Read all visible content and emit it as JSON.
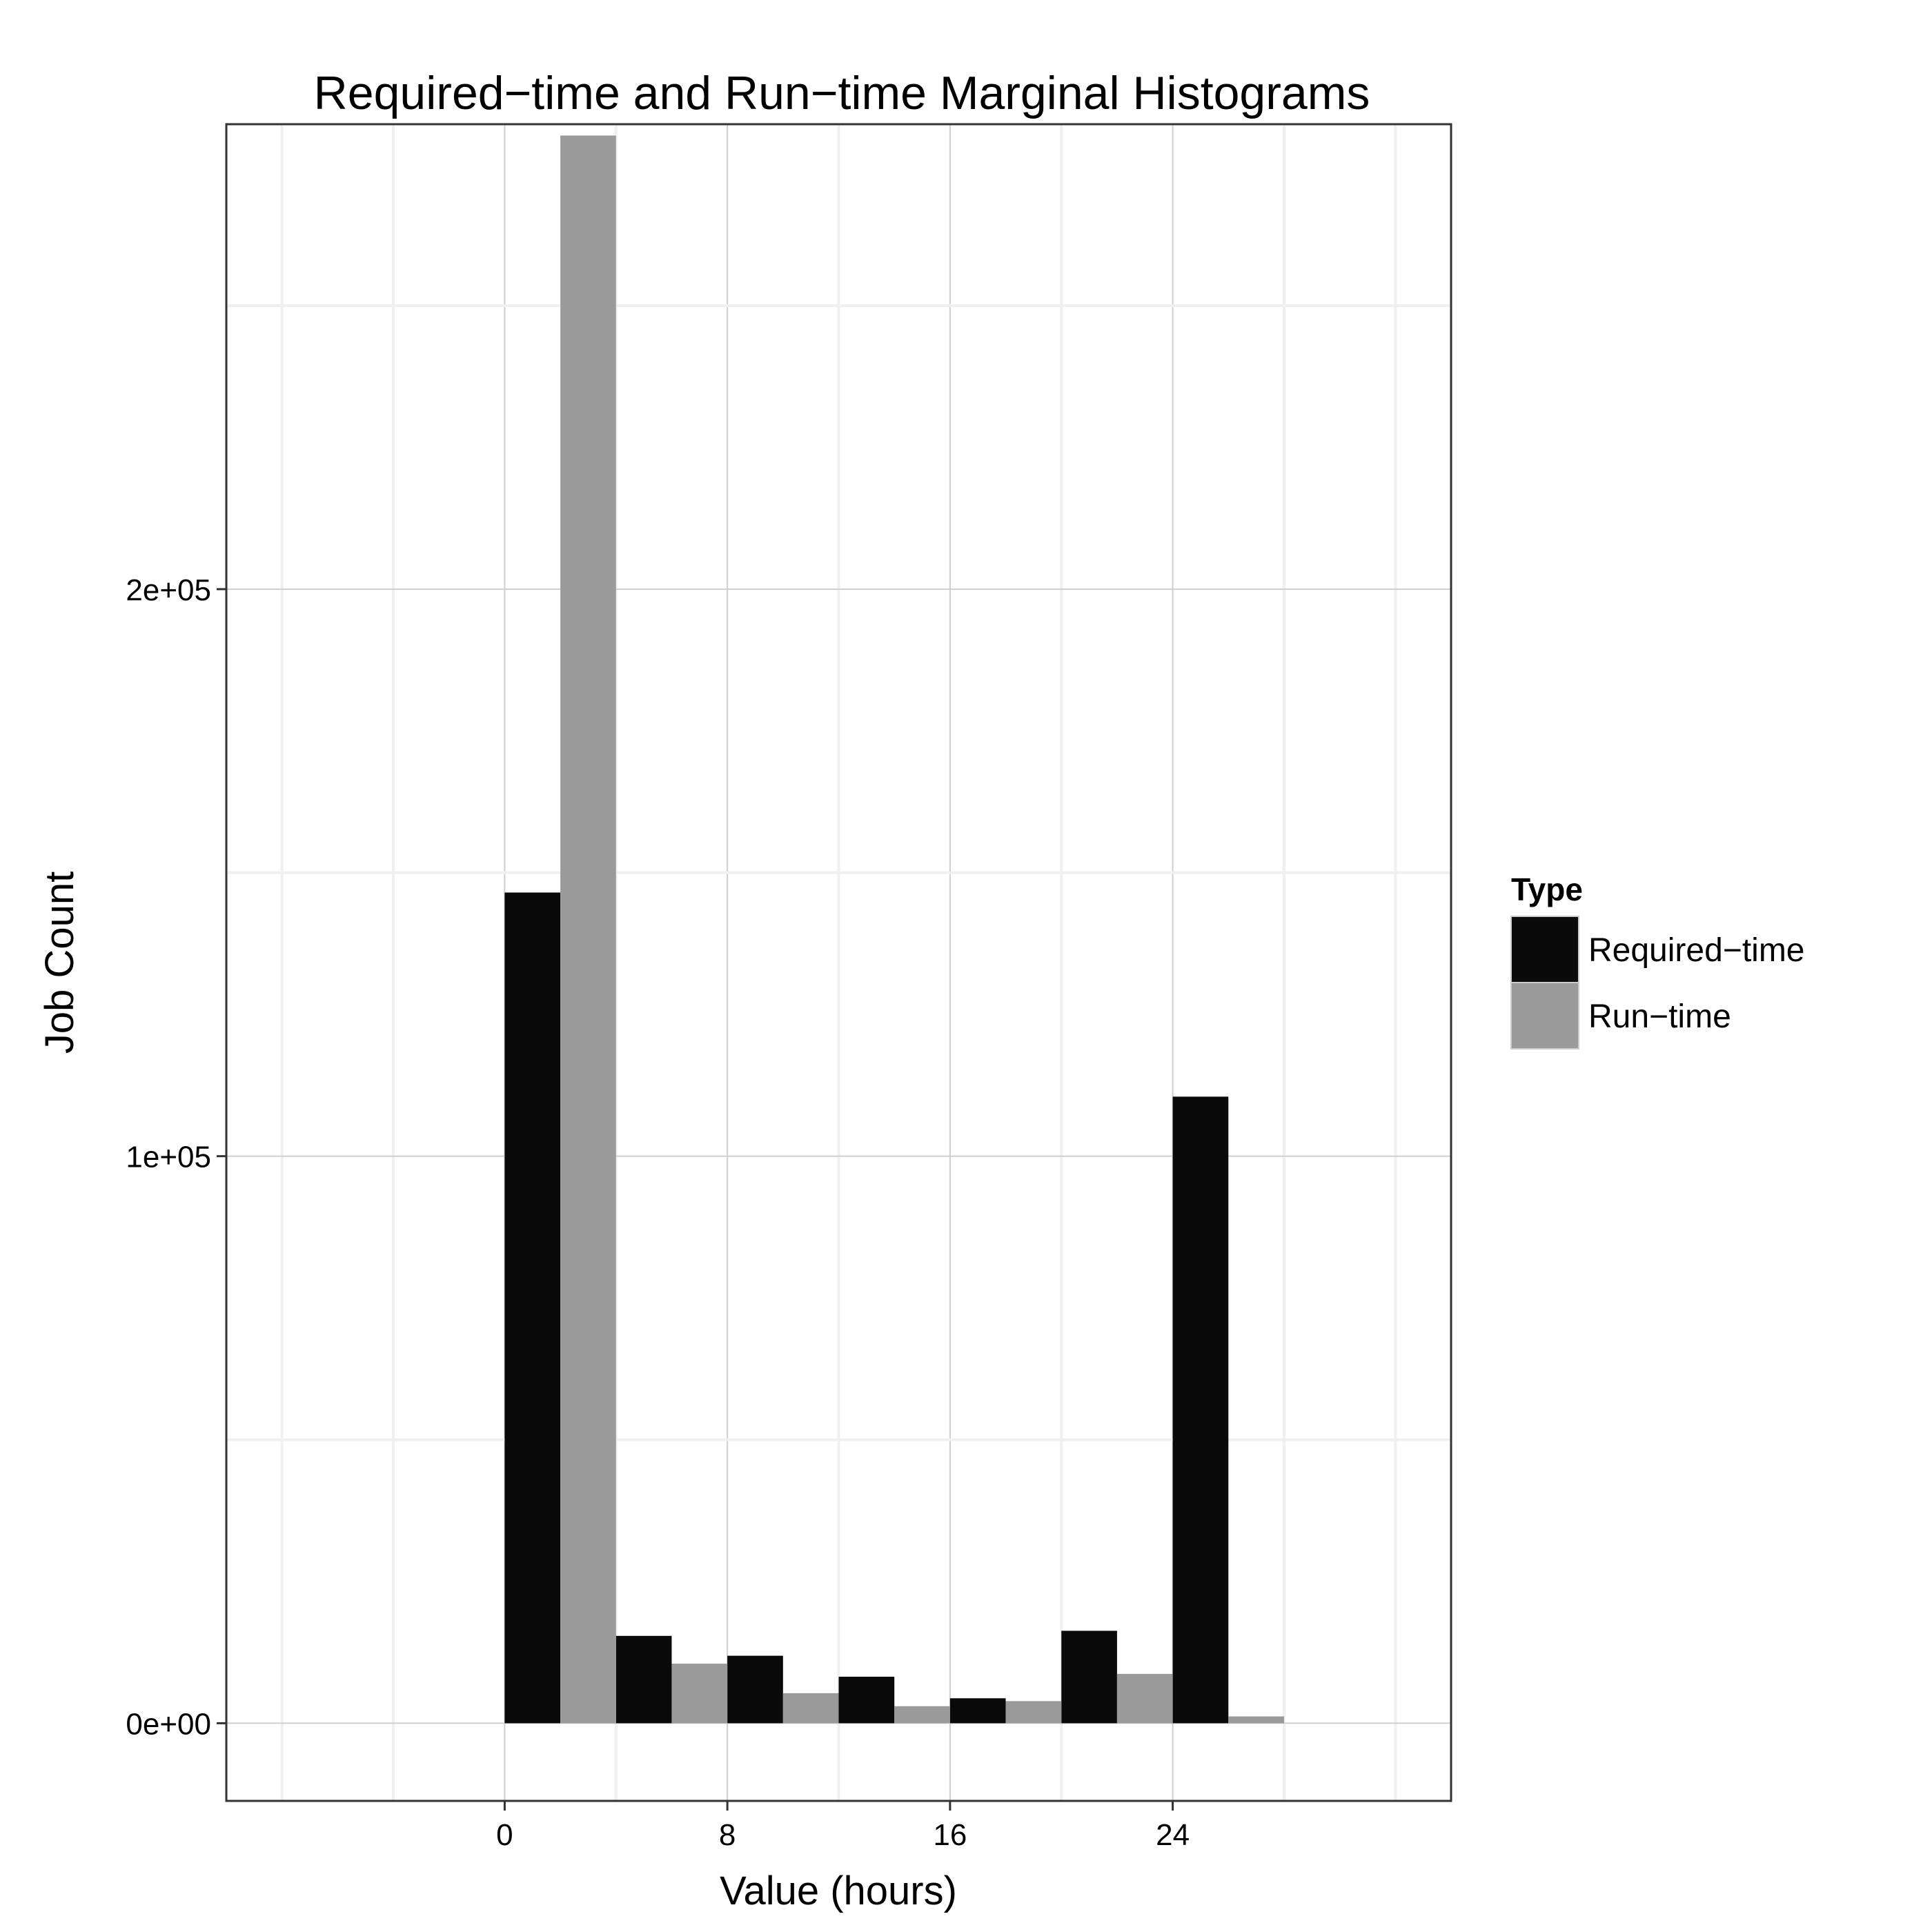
{
  "chart_data": {
    "type": "bar",
    "title": "Required−time and Run−time Marginal Histograms",
    "xlabel": "Value (hours)",
    "ylabel": "Job Count",
    "xlim": [
      -10,
      34
    ],
    "ylim": [
      -13700,
      282000
    ],
    "x_ticks": [
      0,
      8,
      16,
      24
    ],
    "x_tick_labels": [
      "0",
      "8",
      "16",
      "24"
    ],
    "y_ticks": [
      0,
      100000,
      200000
    ],
    "y_tick_labels": [
      "0e+00",
      "1e+05",
      "2e+05"
    ],
    "bin_width": 4,
    "bin_starts": [
      0,
      4,
      8,
      12,
      16,
      20,
      24
    ],
    "position": "dodge",
    "grid": true,
    "legend": {
      "title": "Type",
      "position": "right"
    },
    "series": [
      {
        "name": "Required−time",
        "color": "#0a0a0a",
        "values": [
          146500,
          15400,
          11900,
          8200,
          4400,
          16300,
          110500
        ]
      },
      {
        "name": "Run−time",
        "color": "#9a9a9a",
        "values": [
          280000,
          10500,
          5300,
          3000,
          3900,
          8700,
          1200
        ]
      }
    ]
  }
}
